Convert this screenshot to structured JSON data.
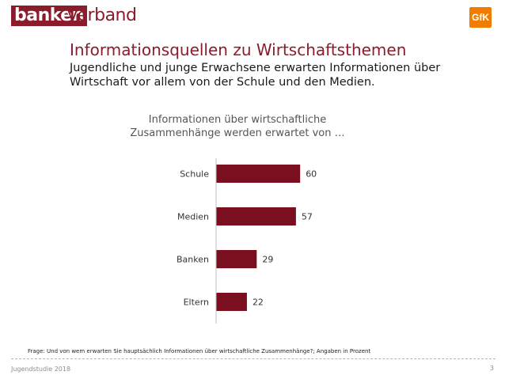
{
  "header": {
    "logo_part1": "banken",
    "logo_part2": "verband",
    "partner_logo": "GfK"
  },
  "title": "Informationsquellen zu Wirtschaftsthemen",
  "subtitle": "Jugendliche und junge Erwachsene erwarten Informationen über Wirtschaft vor allem von der Schule und den Medien.",
  "chart_title": "Informationen über wirtschaftliche Zusammenhänge werden erwartet von …",
  "chart_data": {
    "type": "bar",
    "orientation": "horizontal",
    "title": "Informationen über wirtschaftliche Zusammenhänge werden erwartet von …",
    "categories": [
      "Schule",
      "Medien",
      "Banken",
      "Eltern"
    ],
    "values": [
      60,
      57,
      29,
      22
    ],
    "xlabel": "",
    "ylabel": "",
    "xlim": [
      0,
      100
    ],
    "grid": false,
    "legend": "none",
    "bar_color": "#7a0f1f"
  },
  "footnote": "Frage: Und von wem erwarten Sie hauptsächlich Informationen über wirtschaftliche Zusammenhänge?; Angaben in Prozent",
  "footer": {
    "left": "Jugendstudie 2018",
    "page": "3"
  },
  "colors": {
    "brand": "#8a1c2b",
    "bar": "#7a0f1f",
    "partner": "#f07d00"
  }
}
